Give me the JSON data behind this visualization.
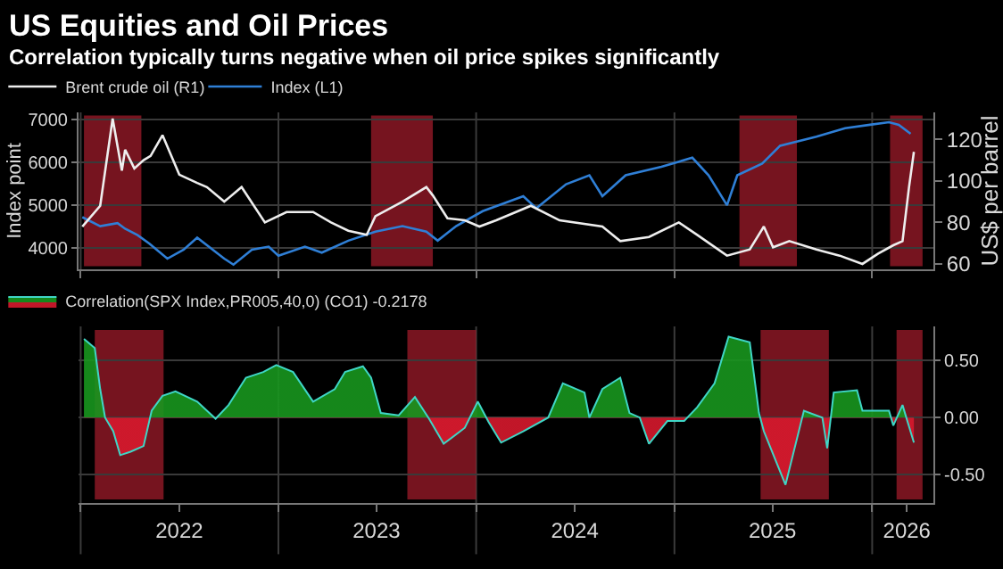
{
  "chart_data": [
    {
      "type": "line",
      "title": "US Equities and Oil Prices",
      "subtitle": "Correlation typically turns negative when oil price spikes significantly",
      "ylabel": "Index point",
      "y2label": "US$ per barrel",
      "xlim": [
        "2021-12-28",
        "2026-04-24"
      ],
      "xticks": [
        {
          "value": "2022-01-01",
          "label": null
        },
        {
          "value": "2023-01-01",
          "label": null
        },
        {
          "value": "2024-01-01",
          "label": null
        },
        {
          "value": "2025-01-01",
          "label": null
        },
        {
          "value": "2026-01-01",
          "label": null
        }
      ],
      "tick_labels": "y",
      "ylim": [
        3500,
        7170
      ],
      "yticks": [
        4000,
        5000,
        6000,
        7000
      ],
      "y2lim": [
        57.4,
        133
      ],
      "y2ticks": [
        60,
        80,
        100,
        120
      ],
      "grid": true,
      "legend": "top left",
      "series": [
        {
          "name": "Brent crude oil (R1)",
          "color": "#eeeeee",
          "axis": "y2",
          "x": [
            "2022-01-04",
            "2022-02-06",
            "2022-03-01",
            "2022-03-18",
            "2022-03-24",
            "2022-04-10",
            "2022-04-27",
            "2022-05-10",
            "2022-06-01",
            "2022-07-02",
            "2022-08-04",
            "2022-08-22",
            "2022-09-23",
            "2022-10-25",
            "2022-12-07",
            "2023-01-16",
            "2023-03-06",
            "2023-04-08",
            "2023-05-10",
            "2023-06-13",
            "2023-06-29",
            "2023-08-18",
            "2023-10-01",
            "2023-10-13",
            "2023-11-09",
            "2023-12-11",
            "2024-01-07",
            "2024-02-07",
            "2024-04-11",
            "2024-06-03",
            "2024-08-21",
            "2024-09-23",
            "2024-11-15",
            "2025-01-09",
            "2025-02-12",
            "2025-04-08",
            "2025-05-20",
            "2025-06-15",
            "2025-07-02",
            "2025-08-01",
            "2025-09-20",
            "2025-11-02",
            "2025-12-14",
            "2026-01-12",
            "2026-02-09",
            "2026-02-26",
            "2026-03-10",
            "2026-03-19"
          ],
          "values": [
            78,
            88,
            130,
            105,
            115,
            106,
            110,
            112,
            122,
            103,
            99,
            97,
            90,
            97,
            80,
            85,
            85,
            80,
            76,
            74,
            83,
            90,
            97,
            93,
            82,
            81,
            78,
            81,
            88,
            81,
            78,
            71,
            73,
            80,
            74,
            64,
            67,
            78,
            68,
            71,
            67,
            64,
            60,
            65,
            69,
            71,
            97,
            114
          ]
        },
        {
          "name": "Index (L1)",
          "color": "#2f7fd6",
          "x": [
            "2022-01-04",
            "2022-02-06",
            "2022-03-10",
            "2022-03-24",
            "2022-04-16",
            "2022-05-08",
            "2022-06-10",
            "2022-07-10",
            "2022-08-04",
            "2022-09-23",
            "2022-10-10",
            "2022-11-13",
            "2022-12-14",
            "2023-01-01",
            "2023-02-19",
            "2023-03-22",
            "2023-05-10",
            "2023-06-29",
            "2023-08-18",
            "2023-10-01",
            "2023-10-22",
            "2023-11-25",
            "2024-01-13",
            "2024-03-28",
            "2024-04-21",
            "2024-06-15",
            "2024-07-28",
            "2024-08-21",
            "2024-10-03",
            "2024-12-08",
            "2025-02-03",
            "2025-03-05",
            "2025-04-08",
            "2025-04-27",
            "2025-06-12",
            "2025-07-15",
            "2025-09-20",
            "2025-11-12",
            "2025-12-28",
            "2026-02-01",
            "2026-02-19",
            "2026-03-13"
          ],
          "values": [
            4720,
            4510,
            4580,
            4450,
            4300,
            4100,
            3750,
            3960,
            4240,
            3750,
            3610,
            3960,
            4030,
            3820,
            4030,
            3890,
            4170,
            4380,
            4510,
            4380,
            4170,
            4510,
            4860,
            5210,
            4930,
            5490,
            5700,
            5210,
            5700,
            5900,
            6110,
            5700,
            5000,
            5700,
            5970,
            6390,
            6600,
            6800,
            6880,
            6940,
            6880,
            6670
          ]
        }
      ],
      "bands": [
        {
          "axis": "x",
          "from": "2022-01-07",
          "to": "2022-04-23",
          "color": "#9e1b2a"
        },
        {
          "axis": "x",
          "from": "2023-06-21",
          "to": "2023-10-13",
          "color": "#9e1b2a"
        },
        {
          "axis": "x",
          "from": "2025-05-01",
          "to": "2025-08-15",
          "color": "#9e1b2a"
        },
        {
          "axis": "x",
          "from": "2026-02-03",
          "to": "2026-04-04",
          "color": "#9e1b2a"
        }
      ]
    },
    {
      "type": "area",
      "xlim": [
        "2021-12-28",
        "2026-04-24"
      ],
      "xticks": [
        {
          "value": "2022-01-01",
          "label": null
        },
        {
          "value": "2022-07-02",
          "label": "2022"
        },
        {
          "value": "2023-01-01",
          "label": null
        },
        {
          "value": "2023-07-01",
          "label": "2023"
        },
        {
          "value": "2024-01-01",
          "label": null
        },
        {
          "value": "2024-07-01",
          "label": "2024"
        },
        {
          "value": "2025-01-01",
          "label": null
        },
        {
          "value": "2025-07-01",
          "label": "2025"
        },
        {
          "value": "2026-01-01",
          "label": null
        },
        {
          "value": "2026-03-06",
          "label": "2026"
        }
      ],
      "ylim": [
        -0.75,
        0.8
      ],
      "yticks": [
        {
          "value": -0.5,
          "label": "-0.50"
        },
        {
          "value": 0,
          "label": "0.00"
        },
        {
          "value": 0.5,
          "label": "0.50"
        }
      ],
      "grid": true,
      "legend": "top left",
      "series": [
        {
          "name": "Correlation(SPX Index,PR005,40,0) (CO1) -0.2178",
          "color": "#3fd6c6",
          "x": [
            "2022-01-07",
            "2022-01-27",
            "2022-02-06",
            "2022-02-15",
            "2022-03-02",
            "2022-03-15",
            "2022-04-03",
            "2022-04-27",
            "2022-05-12",
            "2022-06-01",
            "2022-06-25",
            "2022-08-04",
            "2022-09-07",
            "2022-10-01",
            "2022-11-02",
            "2022-12-04",
            "2022-12-28",
            "2023-01-28",
            "2023-03-06",
            "2023-04-15",
            "2023-05-04",
            "2023-06-06",
            "2023-06-21",
            "2023-07-09",
            "2023-08-11",
            "2023-09-10",
            "2023-10-06",
            "2023-11-02",
            "2023-12-11",
            "2024-01-04",
            "2024-01-24",
            "2024-02-16",
            "2024-03-28",
            "2024-05-13",
            "2024-06-09",
            "2024-07-19",
            "2024-07-28",
            "2024-08-21",
            "2024-09-23",
            "2024-10-10",
            "2024-10-29",
            "2024-11-15",
            "2024-12-19",
            "2025-01-19",
            "2025-02-12",
            "2025-03-16",
            "2025-04-11",
            "2025-05-20",
            "2025-06-06",
            "2025-06-15",
            "2025-07-25",
            "2025-08-28",
            "2025-10-01",
            "2025-10-10",
            "2025-10-22",
            "2025-12-04",
            "2025-12-14",
            "2026-02-01",
            "2026-02-09",
            "2026-02-26",
            "2026-03-19"
          ],
          "values": [
            0.69,
            0.61,
            0.25,
            0.0,
            -0.12,
            -0.33,
            -0.3,
            -0.25,
            0.06,
            0.19,
            0.23,
            0.14,
            -0.01,
            0.11,
            0.35,
            0.4,
            0.46,
            0.4,
            0.14,
            0.25,
            0.4,
            0.45,
            0.35,
            0.04,
            0.02,
            0.18,
            -0.01,
            -0.23,
            -0.09,
            0.14,
            -0.04,
            -0.22,
            -0.12,
            0.0,
            0.3,
            0.22,
            0.0,
            0.25,
            0.35,
            0.04,
            0.0,
            -0.23,
            -0.03,
            -0.03,
            0.09,
            0.3,
            0.71,
            0.66,
            0.04,
            -0.12,
            -0.59,
            0.06,
            0.0,
            -0.27,
            0.22,
            0.24,
            0.06,
            0.06,
            -0.07,
            0.11,
            -0.22
          ]
        }
      ],
      "bands": [
        {
          "axis": "x",
          "from": "2022-01-27",
          "to": "2022-06-03",
          "color": "#9e1b2a"
        },
        {
          "axis": "x",
          "from": "2023-08-27",
          "to": "2024-01-01",
          "color": "#9e1b2a"
        },
        {
          "axis": "x",
          "from": "2025-06-09",
          "to": "2025-10-13",
          "color": "#9e1b2a"
        },
        {
          "axis": "x",
          "from": "2026-02-15",
          "to": "2026-04-04",
          "color": "#9e1b2a"
        }
      ]
    }
  ]
}
